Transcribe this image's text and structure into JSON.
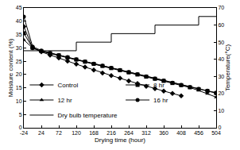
{
  "chart_data": {
    "type": "line",
    "x_label": "Drying time (hour)",
    "y_label": "Moisture content (%)",
    "y2_label": "Temperature(°C)",
    "xlim": [
      -24,
      504
    ],
    "xticks": [
      -24,
      24,
      72,
      120,
      168,
      216,
      264,
      312,
      360,
      408,
      456,
      504
    ],
    "ylim": [
      0,
      45
    ],
    "yticks": [
      0,
      5,
      10,
      15,
      20,
      25,
      30,
      35,
      40,
      45
    ],
    "y2lim": [
      0,
      70
    ],
    "y2ticks": [
      0,
      10,
      20,
      30,
      40,
      50,
      60,
      70
    ],
    "grid": false,
    "legend": "lower left",
    "series": [
      {
        "name": "Control",
        "color": "#000000",
        "marker": "diamond",
        "line_style": "solid",
        "x": [
          -24,
          0,
          24,
          48,
          72,
          96,
          120,
          144,
          168,
          192,
          216,
          240,
          264,
          288,
          312,
          336,
          360,
          384,
          408
        ],
        "values": [
          38,
          30,
          28.5,
          27.3,
          26.2,
          25,
          23.9,
          22.8,
          21.7,
          20.6,
          19.6,
          18.6,
          17.6,
          16.6,
          15.6,
          14.7,
          13.8,
          12.9,
          12.0
        ]
      },
      {
        "name": "8 hr",
        "color": "#000000",
        "marker": "square",
        "line_style": "solid",
        "x": [
          -24,
          0,
          24,
          48,
          72,
          96,
          120,
          144,
          168,
          192,
          216,
          240,
          264,
          288,
          312,
          336,
          360,
          384,
          408,
          432,
          456,
          480,
          504
        ],
        "values": [
          35.5,
          30,
          28.8,
          28,
          27.2,
          26.4,
          25.6,
          24.8,
          24,
          23.2,
          22.4,
          21.6,
          20.8,
          20,
          19.2,
          18.4,
          17.6,
          16.8,
          16,
          15.2,
          14.5,
          13.8,
          13.0
        ]
      },
      {
        "name": "12 hr",
        "color": "#000000",
        "marker": "triangle",
        "line_style": "solid",
        "x": [
          -24,
          0,
          24,
          48,
          72,
          96,
          120,
          144,
          168,
          192,
          216,
          240,
          264,
          288,
          312,
          336,
          360,
          384,
          408,
          432,
          456,
          480,
          504
        ],
        "values": [
          33,
          30,
          28.7,
          27.9,
          27.1,
          26.3,
          25.5,
          24.7,
          23.9,
          23.1,
          22.3,
          21.5,
          20.7,
          19.9,
          19.1,
          18.3,
          17.5,
          16.7,
          15.9,
          15.1,
          14.0,
          12.8,
          11.5
        ]
      },
      {
        "name": "16 hr",
        "color": "#000000",
        "marker": "circle",
        "line_style": "solid",
        "x": [
          -24,
          0,
          24,
          48,
          72,
          96,
          120,
          144,
          168,
          192,
          216,
          240,
          264,
          288,
          312,
          336,
          360,
          384,
          408,
          432,
          456,
          480,
          504
        ],
        "values": [
          41.7,
          30.5,
          29,
          28.1,
          27.3,
          26.5,
          25.7,
          24.9,
          24.1,
          23.3,
          22.5,
          21.7,
          20.9,
          20.1,
          19.3,
          18.5,
          17.7,
          16.9,
          16.1,
          15.3,
          14.6,
          13.9,
          13.2
        ]
      },
      {
        "name": "Dry bulb temperature",
        "color": "#000000",
        "type": "step",
        "axis": "y2",
        "line_style": "solid",
        "x": [
          -24,
          120,
          216,
          336,
          456,
          504
        ],
        "values": [
          45,
          50,
          55,
          60,
          65,
          65
        ]
      }
    ]
  }
}
